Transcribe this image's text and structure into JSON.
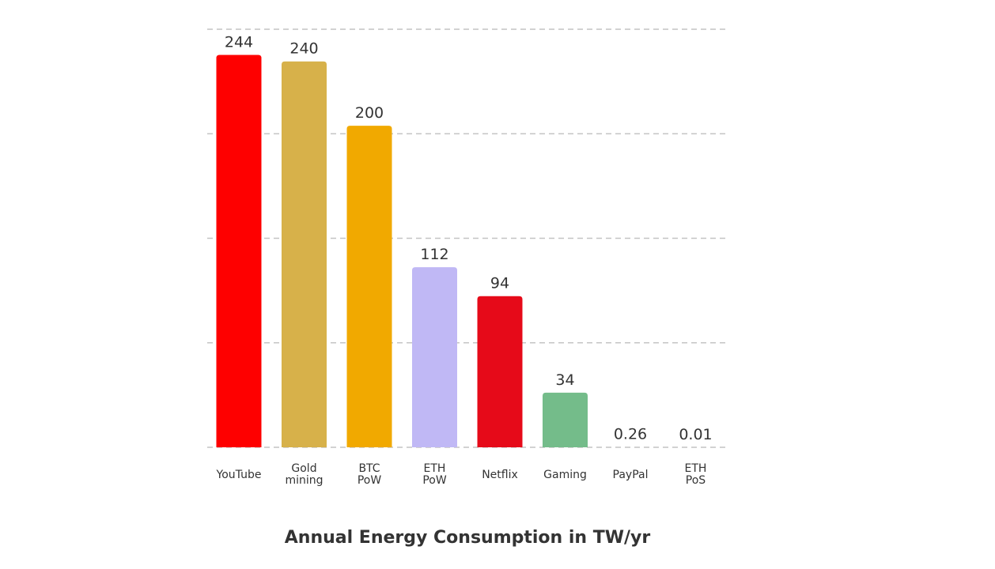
{
  "chart_data": {
    "type": "bar",
    "title": "Annual Energy Consumption in TW/yr",
    "xlabel": "",
    "ylabel": "",
    "ylim": [
      0,
      260
    ],
    "grid": true,
    "gridlines": [
      0,
      65,
      130,
      195,
      260
    ],
    "categories": [
      [
        "YouTube"
      ],
      [
        "Gold",
        "mining"
      ],
      [
        "BTC",
        "PoW"
      ],
      [
        "ETH",
        "PoW"
      ],
      [
        "Netflix"
      ],
      [
        "Gaming"
      ],
      [
        "PayPal"
      ],
      [
        "ETH",
        "PoS"
      ]
    ],
    "values": [
      244,
      240,
      200,
      112,
      94,
      34,
      0.26,
      0.01
    ],
    "value_labels": [
      "244",
      "240",
      "200",
      "112",
      "94",
      "34",
      "0.26",
      "0.01"
    ],
    "colors": [
      "#fe0000",
      "#d7b14a",
      "#f1a900",
      "#c0b8f5",
      "#e60a19",
      "#74bc8a",
      "#8e8e8e",
      "#8e8e8e"
    ]
  }
}
